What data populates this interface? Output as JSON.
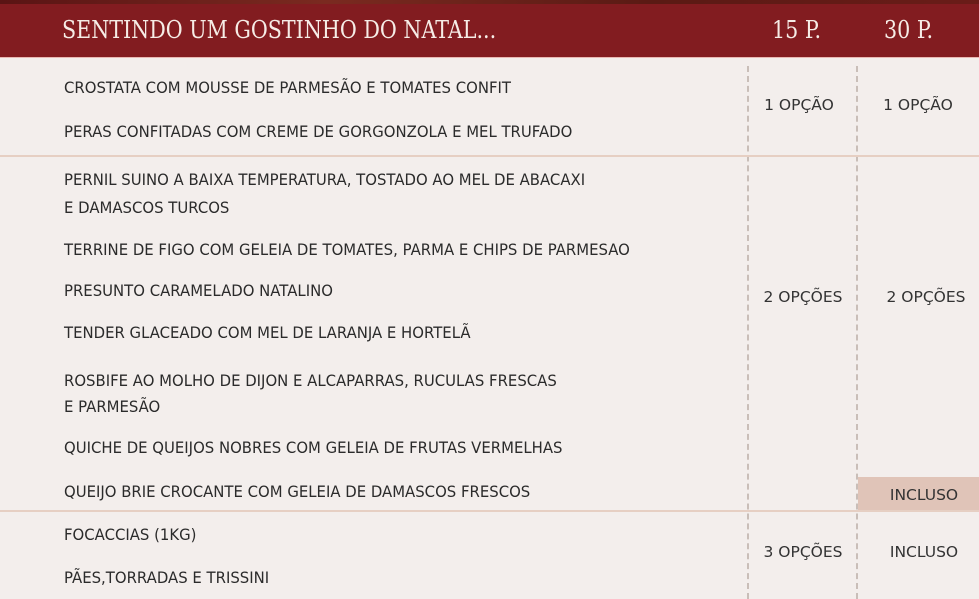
{
  "header": {
    "title": "SENTINDO UM GOSTINHO DO NATAL...",
    "col1": "15 P.",
    "col2": "30 P."
  },
  "sections": [
    {
      "items": [
        "CROSTATA COM MOUSSE DE PARMESÃO E TOMATES CONFIT",
        "PERAS CONFITADAS COM CREME DE GORGONZOLA E MEL TRUFADO"
      ],
      "opt15": "1 OPÇÃO",
      "opt30": "1 OPÇÃO"
    },
    {
      "items": [
        "PERNIL SUINO A BAIXA TEMPERATURA, TOSTADO AO MEL DE ABACAXI",
        "E DAMASCOS TURCOS",
        "TERRINE DE FIGO COM GELEIA DE TOMATES, PARMA E CHIPS DE PARMESAO",
        "PRESUNTO CARAMELADO NATALINO",
        "TENDER GLACEADO COM MEL DE LARANJA E HORTELÃ",
        "ROSBIFE AO MOLHO DE DIJON E ALCAPARRAS, RUCULAS FRESCAS",
        "E PARMESÃO",
        "QUICHE DE QUEIJOS NOBRES COM GELEIA DE FRUTAS VERMELHAS",
        "QUEIJO BRIE CROCANTE COM GELEIA DE DAMASCOS FRESCOS"
      ],
      "opt15": "2 OPÇÕES",
      "opt30": "2 OPÇÕES",
      "opt30_extra": "INCLUSO"
    },
    {
      "items": [
        "FOCACCIAS (1KG)",
        "PÃES,TORRADAS E  TRISSINI"
      ],
      "opt15": "3 OPÇÕES",
      "opt30": "INCLUSO"
    }
  ],
  "colors": {
    "header": "#821c20",
    "highlight": "#e0c4b8",
    "background": "#f3eeec"
  }
}
